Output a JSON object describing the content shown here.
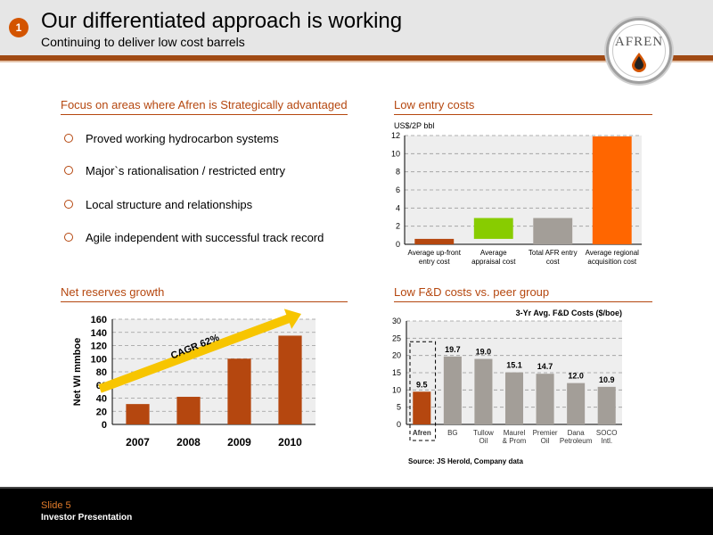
{
  "header": {
    "badge": "1",
    "title": "Our differentiated approach is working",
    "subtitle": "Continuing to deliver low cost barrels",
    "logo_text": "AFREN"
  },
  "focus": {
    "title": "Focus on areas where Afren is Strategically advantaged",
    "items": [
      "Proved working hydrocarbon systems",
      "Major`s rationalisation / restricted entry",
      "Local structure and relationships",
      "Agile independent with successful track record"
    ]
  },
  "footer": {
    "slide": "Slide 5",
    "presentation": "Investor Presentation"
  },
  "colors": {
    "accent": "#b5470f",
    "bar_orange": "#b5470f",
    "bar_bright_orange": "#ff6600",
    "bar_green": "#88cc00",
    "bar_grey": "#a39e98",
    "arrow_yellow": "#f7c500"
  },
  "chart_data": [
    {
      "id": "low-entry-costs",
      "type": "bar",
      "title": "Low entry costs",
      "ylabel": "US$/2P bbl",
      "ylim": [
        0,
        12
      ],
      "yticks": [
        0,
        2,
        4,
        6,
        8,
        10,
        12
      ],
      "grid": true,
      "categories": [
        [
          "Average up-front",
          "entry cost"
        ],
        [
          "Average",
          "appraisal cost"
        ],
        [
          "Total AFR entry",
          "cost"
        ],
        [
          "Average regional",
          "acquisition cost"
        ]
      ],
      "bars": [
        {
          "start": 0,
          "end": 0.6,
          "color": "#b5470f"
        },
        {
          "start": 0.6,
          "end": 2.9,
          "color": "#88cc00"
        },
        {
          "start": 0,
          "end": 2.9,
          "color": "#a39e98"
        },
        {
          "start": 0,
          "end": 11.9,
          "color": "#ff6600"
        }
      ]
    },
    {
      "id": "net-reserves-growth",
      "type": "bar",
      "title": "Net reserves growth",
      "ylabel": "Net WI mmboe",
      "ylim": [
        0,
        160
      ],
      "yticks": [
        0,
        20,
        40,
        60,
        80,
        100,
        120,
        140,
        160
      ],
      "grid": true,
      "categories": [
        "2007",
        "2008",
        "2009",
        "2010"
      ],
      "values": [
        31,
        42,
        100,
        135
      ],
      "annotation": "CAGR 62%"
    },
    {
      "id": "low-fd-costs",
      "type": "bar",
      "title": "Low F&D costs vs. peer group",
      "series_title": "3-Yr Avg. F&D Costs ($/boe)",
      "ylim": [
        0,
        30
      ],
      "yticks": [
        0,
        5,
        10,
        15,
        20,
        25,
        30
      ],
      "grid": true,
      "categories": [
        [
          "Afren"
        ],
        [
          "BG"
        ],
        [
          "Tullow",
          "Oil"
        ],
        [
          "Maurel",
          "& Prom"
        ],
        [
          "Premier",
          "Oil"
        ],
        [
          "Dana",
          "Petroleum"
        ],
        [
          "SOCO",
          "Intl."
        ]
      ],
      "values": [
        9.5,
        19.7,
        19.0,
        15.1,
        14.7,
        12.0,
        10.9
      ],
      "value_labels": [
        "9.5",
        "19.7",
        "19.0",
        "15.1",
        "14.7",
        "12.0",
        "10.9"
      ],
      "highlight_index": 0,
      "source": "Source: JS Herold, Company data"
    }
  ]
}
